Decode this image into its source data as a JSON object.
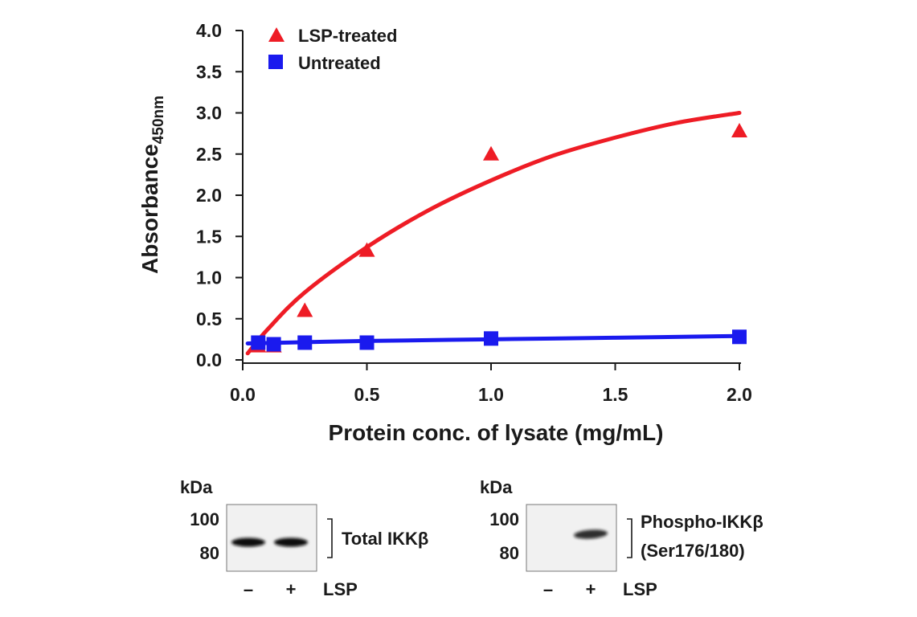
{
  "chart_data": {
    "type": "scatter",
    "xlabel": "Protein conc. of lysate (mg/mL)",
    "ylabel_main": "Absorbance",
    "ylabel_sub": "450nm",
    "xlim": [
      0.0,
      2.0
    ],
    "ylim": [
      0.0,
      4.0
    ],
    "x_ticks": [
      "0.0",
      "0.5",
      "1.0",
      "1.5",
      "2.0"
    ],
    "y_ticks": [
      "0.0",
      "0.5",
      "1.0",
      "1.5",
      "2.0",
      "2.5",
      "3.0",
      "3.5",
      "4.0"
    ],
    "grid": false,
    "legend_position": "top-left",
    "series": [
      {
        "name": "LSP-treated",
        "marker": "triangle",
        "color": "#ee1c25",
        "x": [
          0.0625,
          0.125,
          0.25,
          0.5,
          1.0,
          2.0
        ],
        "y": [
          0.17,
          0.17,
          0.6,
          1.33,
          2.5,
          2.78
        ],
        "fit": {
          "x": [
            0.02,
            0.1,
            0.25,
            0.5,
            0.75,
            1.0,
            1.25,
            1.5,
            1.75,
            2.0
          ],
          "y": [
            0.08,
            0.37,
            0.82,
            1.37,
            1.82,
            2.18,
            2.48,
            2.7,
            2.88,
            3.0
          ]
        }
      },
      {
        "name": "Untreated",
        "marker": "square",
        "color": "#1a1aee",
        "x": [
          0.0625,
          0.125,
          0.25,
          0.5,
          1.0,
          2.0
        ],
        "y": [
          0.21,
          0.19,
          0.21,
          0.21,
          0.26,
          0.28
        ],
        "fit": {
          "x": [
            0.02,
            0.5,
            1.0,
            1.5,
            2.0
          ],
          "y": [
            0.2,
            0.23,
            0.25,
            0.27,
            0.29
          ]
        }
      }
    ]
  },
  "blots": [
    {
      "kda_label": "kDa",
      "markers": [
        "100",
        "80"
      ],
      "lanes": [
        "–",
        "+"
      ],
      "treatment": "LSP",
      "band_label": [
        "Total IKKβ"
      ],
      "band_intensity": [
        1.0,
        1.0
      ]
    },
    {
      "kda_label": "kDa",
      "markers": [
        "100",
        "80"
      ],
      "lanes": [
        "–",
        "+"
      ],
      "treatment": "LSP",
      "band_label": [
        "Phospho-IKKβ",
        "(Ser176/180)"
      ],
      "band_intensity": [
        0.0,
        0.85
      ]
    }
  ]
}
